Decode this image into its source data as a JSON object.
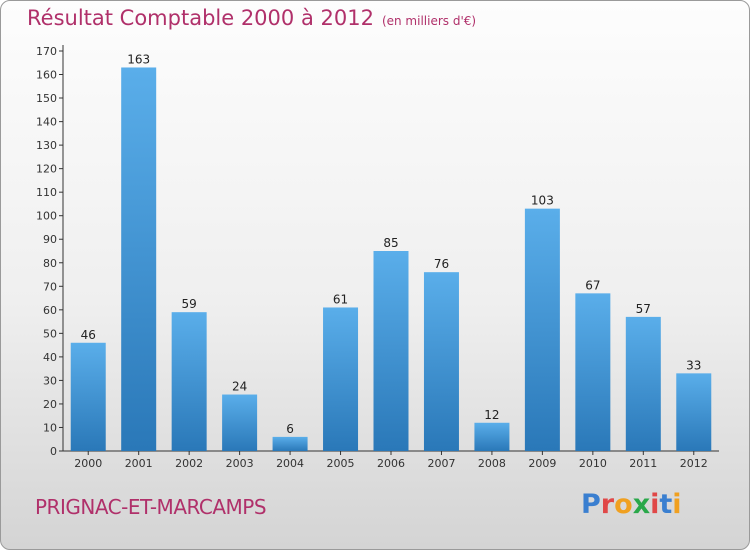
{
  "header": {
    "title": "Résultat Comptable 2000 à 2012",
    "unit_note": "(en milliers d'€)"
  },
  "footer": {
    "commune": "PRIGNAC-ET-MARCAMPS",
    "logo_text": "Proxiti",
    "logo_colors": [
      "#3a7fd0",
      "#e04848",
      "#f0a020",
      "#2aa84a",
      "#e04848",
      "#3a7fd0",
      "#f0a020"
    ]
  },
  "colors": {
    "title": "#b0306a",
    "bar_top": "#5aaeea",
    "bar_bottom": "#2a78b8",
    "axis": "#333333",
    "grid": "#cfcfcf"
  },
  "chart_data": {
    "type": "bar",
    "title": "Résultat Comptable 2000 à 2012",
    "xlabel": "",
    "ylabel": "",
    "categories": [
      "2000",
      "2001",
      "2002",
      "2003",
      "2004",
      "2005",
      "2006",
      "2007",
      "2008",
      "2009",
      "2010",
      "2011",
      "2012"
    ],
    "values": [
      46,
      163,
      59,
      24,
      6,
      61,
      85,
      76,
      12,
      103,
      67,
      57,
      33
    ],
    "ylim": [
      0,
      170
    ],
    "yticks": [
      0,
      10,
      20,
      30,
      40,
      50,
      60,
      70,
      80,
      90,
      100,
      110,
      120,
      130,
      140,
      150,
      160,
      170
    ],
    "grid": false,
    "legend": "none"
  }
}
